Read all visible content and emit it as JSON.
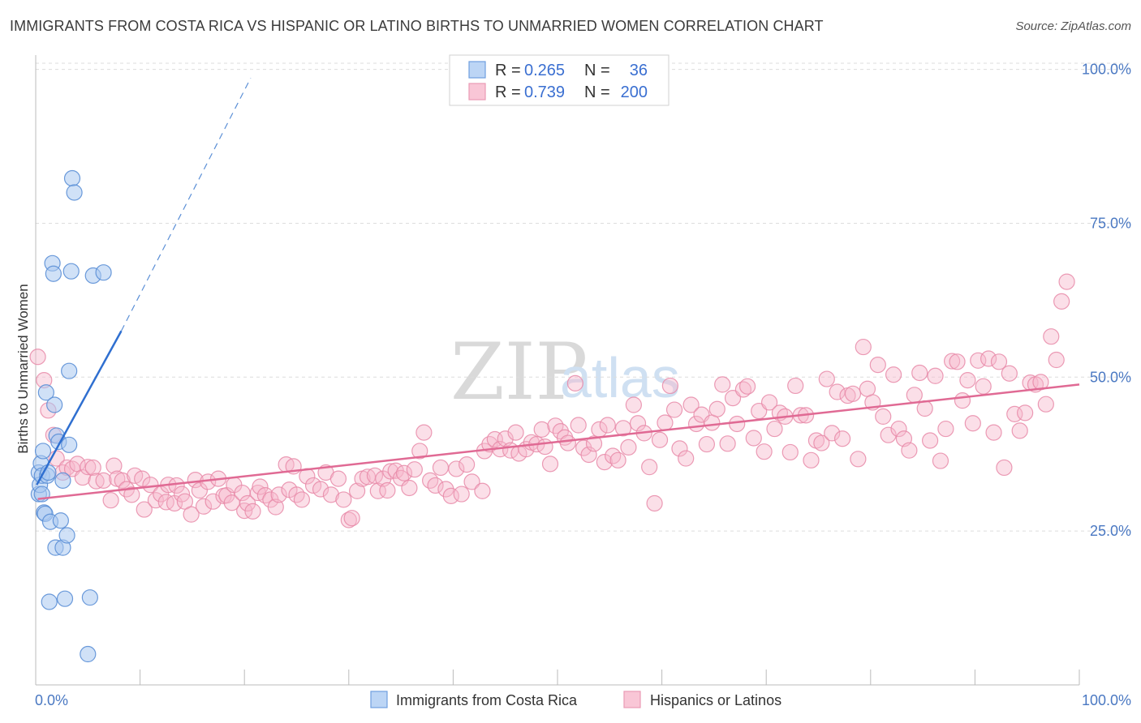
{
  "header": {
    "title": "IMMIGRANTS FROM COSTA RICA VS HISPANIC OR LATINO BIRTHS TO UNMARRIED WOMEN CORRELATION CHART",
    "source": "Source: ZipAtlas.com"
  },
  "watermark": {
    "zip": "ZIP",
    "atlas": "atlas"
  },
  "colors": {
    "blue_fill": "#a9c8f0",
    "blue_stroke": "#5b8fd6",
    "blue_line": "#2f6fd0",
    "pink_fill": "#f6b8cc",
    "pink_stroke": "#e88aa8",
    "pink_line": "#e06a94",
    "grid": "#dddddd",
    "tick_text": "#4a78c2"
  },
  "legend": {
    "rows": [
      {
        "r_label": "R =",
        "r_value": "0.265",
        "n_label": "N =",
        "n_value": "36"
      },
      {
        "r_label": "R =",
        "r_value": "0.739",
        "n_label": "N =",
        "n_value": "200"
      }
    ]
  },
  "bottom_legend": {
    "series1": "Immigrants from Costa Rica",
    "series2": "Hispanics or Latinos"
  },
  "chart_data": {
    "type": "scatter",
    "title": "IMMIGRANTS FROM COSTA RICA VS HISPANIC OR LATINO BIRTHS TO UNMARRIED WOMEN CORRELATION CHART",
    "xlabel": "",
    "ylabel": "Births to Unmarried Women",
    "xlim": [
      0,
      100
    ],
    "ylim": [
      0,
      101
    ],
    "x_tick_labels": [
      "0.0%",
      "100.0%"
    ],
    "y_ticks": [
      25,
      50,
      75,
      100
    ],
    "y_tick_labels": [
      "25.0%",
      "50.0%",
      "75.0%",
      "100.0%"
    ],
    "grid": true,
    "series": [
      {
        "name": "Immigrants from Costa Rica",
        "color": "#a9c8f0",
        "trend": {
          "x0": 0.1,
          "y0": 32.5,
          "x1": 8.2,
          "y1": 57.5,
          "dash_to_x": 20.6,
          "dash_to_y": 98.6
        },
        "points": [
          [
            0.3,
            34.5
          ],
          [
            0.3,
            31
          ],
          [
            0.4,
            32.5
          ],
          [
            0.5,
            36
          ],
          [
            0.6,
            34
          ],
          [
            0.6,
            31
          ],
          [
            0.7,
            38
          ],
          [
            0.8,
            28
          ],
          [
            0.9,
            27.8
          ],
          [
            1.0,
            47.5
          ],
          [
            1.1,
            34
          ],
          [
            1.2,
            34.5
          ],
          [
            1.3,
            13.5
          ],
          [
            1.4,
            26.5
          ],
          [
            1.6,
            68.5
          ],
          [
            1.7,
            66.8
          ],
          [
            1.8,
            45.5
          ],
          [
            1.9,
            22.3
          ],
          [
            2.0,
            40.5
          ],
          [
            2.2,
            39.5
          ],
          [
            2.4,
            26.7
          ],
          [
            2.6,
            22.3
          ],
          [
            2.6,
            33.2
          ],
          [
            2.8,
            14
          ],
          [
            3.0,
            24.3
          ],
          [
            3.2,
            51
          ],
          [
            3.2,
            39
          ],
          [
            3.4,
            67.2
          ],
          [
            3.5,
            82.3
          ],
          [
            3.7,
            80
          ],
          [
            5.0,
            5
          ],
          [
            5.2,
            14.2
          ],
          [
            5.5,
            66.5
          ],
          [
            6.5,
            67
          ]
        ]
      },
      {
        "name": "Hispanics or Latinos",
        "color": "#f6b8cc",
        "trend": {
          "x0": 0.2,
          "y0": 30.2,
          "x1": 100,
          "y1": 48.8
        },
        "points": [
          [
            0.2,
            53.3
          ],
          [
            0.8,
            49.5
          ],
          [
            1.2,
            44.6
          ],
          [
            1.7,
            40.6
          ],
          [
            2.0,
            36.8
          ],
          [
            2.6,
            34.5
          ],
          [
            3.0,
            35.3
          ],
          [
            3.5,
            35.1
          ],
          [
            4.0,
            35.9
          ],
          [
            4.5,
            33.7
          ],
          [
            5.0,
            35.4
          ],
          [
            5.5,
            35.3
          ],
          [
            5.8,
            33.1
          ],
          [
            6.5,
            33.2
          ],
          [
            7.2,
            30
          ],
          [
            7.5,
            35.6
          ],
          [
            7.8,
            33.5
          ],
          [
            8.3,
            33.2
          ],
          [
            8.7,
            31.8
          ],
          [
            9.2,
            30.9
          ],
          [
            9.5,
            34
          ],
          [
            10.2,
            33.5
          ],
          [
            10.4,
            28.5
          ],
          [
            11.0,
            32.5
          ],
          [
            11.5,
            30
          ],
          [
            12.0,
            31
          ],
          [
            12.5,
            29.7
          ],
          [
            12.7,
            32.5
          ],
          [
            13.3,
            29.5
          ],
          [
            13.5,
            32.4
          ],
          [
            14.0,
            31
          ],
          [
            14.3,
            29.8
          ],
          [
            14.9,
            27.7
          ],
          [
            15.3,
            33.3
          ],
          [
            15.7,
            31.6
          ],
          [
            16.1,
            29
          ],
          [
            16.5,
            33
          ],
          [
            17.0,
            29.8
          ],
          [
            17.5,
            33.5
          ],
          [
            18.0,
            30.7
          ],
          [
            18.3,
            30.8
          ],
          [
            18.8,
            29.6
          ],
          [
            19.0,
            32.5
          ],
          [
            19.8,
            31.2
          ],
          [
            20.0,
            28.3
          ],
          [
            20.3,
            29.5
          ],
          [
            20.8,
            28.2
          ],
          [
            21.3,
            31.2
          ],
          [
            21.5,
            32.2
          ],
          [
            22.0,
            30.8
          ],
          [
            22.5,
            30.1
          ],
          [
            23.0,
            28.9
          ],
          [
            23.3,
            30.9
          ],
          [
            24.0,
            35.8
          ],
          [
            24.3,
            31.7
          ],
          [
            24.7,
            35.5
          ],
          [
            25.0,
            30.9
          ],
          [
            25.5,
            30.1
          ],
          [
            26.0,
            33.9
          ],
          [
            26.6,
            32.4
          ],
          [
            27.3,
            31.8
          ],
          [
            27.8,
            34.5
          ],
          [
            28.3,
            30.9
          ],
          [
            29.0,
            33.5
          ],
          [
            29.5,
            30.1
          ],
          [
            30.0,
            26.8
          ],
          [
            30.3,
            27.1
          ],
          [
            30.8,
            31.5
          ],
          [
            31.3,
            33.5
          ],
          [
            31.8,
            33.8
          ],
          [
            32.5,
            34
          ],
          [
            32.8,
            31.5
          ],
          [
            33.3,
            33.5
          ],
          [
            33.7,
            31.6
          ],
          [
            34.0,
            34.7
          ],
          [
            34.5,
            34.8
          ],
          [
            35.0,
            33.6
          ],
          [
            35.3,
            34.4
          ],
          [
            35.8,
            32
          ],
          [
            36.3,
            35
          ],
          [
            36.8,
            38
          ],
          [
            37.2,
            41
          ],
          [
            37.8,
            33.2
          ],
          [
            38.3,
            32.4
          ],
          [
            38.8,
            35.3
          ],
          [
            39.3,
            31.8
          ],
          [
            39.8,
            30.7
          ],
          [
            40.3,
            35.1
          ],
          [
            40.8,
            31
          ],
          [
            41.3,
            35.8
          ],
          [
            41.8,
            33
          ],
          [
            42.8,
            31.5
          ],
          [
            43.0,
            38
          ],
          [
            43.5,
            39.1
          ],
          [
            44.0,
            39.9
          ],
          [
            44.5,
            38.3
          ],
          [
            45.0,
            40
          ],
          [
            45.5,
            38.1
          ],
          [
            46.0,
            41
          ],
          [
            46.3,
            37.6
          ],
          [
            47.0,
            38.3
          ],
          [
            47.5,
            39.4
          ],
          [
            48.0,
            39.1
          ],
          [
            48.5,
            41.5
          ],
          [
            48.8,
            38.7
          ],
          [
            49.3,
            35.9
          ],
          [
            49.8,
            42.1
          ],
          [
            50.3,
            41.2
          ],
          [
            50.7,
            40.2
          ],
          [
            51.0,
            39.3
          ],
          [
            51.7,
            49
          ],
          [
            52.0,
            42.2
          ],
          [
            52.5,
            38.5
          ],
          [
            53.0,
            37.4
          ],
          [
            53.5,
            39.2
          ],
          [
            54.0,
            41.5
          ],
          [
            54.5,
            36.2
          ],
          [
            54.8,
            42.2
          ],
          [
            55.3,
            37.2
          ],
          [
            55.8,
            36.5
          ],
          [
            56.3,
            41.7
          ],
          [
            56.8,
            38.6
          ],
          [
            57.3,
            45.5
          ],
          [
            57.7,
            42.5
          ],
          [
            58.3,
            40.9
          ],
          [
            58.8,
            35.4
          ],
          [
            59.3,
            29.5
          ],
          [
            59.8,
            39.8
          ],
          [
            60.3,
            42.6
          ],
          [
            60.8,
            48.6
          ],
          [
            61.2,
            44.7
          ],
          [
            61.7,
            38.4
          ],
          [
            62.3,
            36.8
          ],
          [
            62.8,
            45.5
          ],
          [
            63.3,
            42.4
          ],
          [
            63.8,
            43.9
          ],
          [
            64.3,
            39.1
          ],
          [
            64.8,
            42.6
          ],
          [
            65.3,
            44.8
          ],
          [
            65.8,
            48.8
          ],
          [
            66.3,
            39.2
          ],
          [
            66.8,
            46.6
          ],
          [
            67.2,
            42.4
          ],
          [
            67.8,
            48
          ],
          [
            68.2,
            48.5
          ],
          [
            68.8,
            40.1
          ],
          [
            69.3,
            44.5
          ],
          [
            69.8,
            37.9
          ],
          [
            70.3,
            45.9
          ],
          [
            70.8,
            41.6
          ],
          [
            71.3,
            44.2
          ],
          [
            71.8,
            43.6
          ],
          [
            72.3,
            37.8
          ],
          [
            72.8,
            48.6
          ],
          [
            73.3,
            43.8
          ],
          [
            73.8,
            43.8
          ],
          [
            74.3,
            36.5
          ],
          [
            74.8,
            39.7
          ],
          [
            75.3,
            39.3
          ],
          [
            75.8,
            49.7
          ],
          [
            76.3,
            40.9
          ],
          [
            76.8,
            47.6
          ],
          [
            77.3,
            40
          ],
          [
            77.8,
            47
          ],
          [
            78.3,
            47.3
          ],
          [
            78.8,
            36.7
          ],
          [
            79.3,
            54.9
          ],
          [
            79.7,
            48.1
          ],
          [
            80.2,
            45.9
          ],
          [
            80.7,
            52
          ],
          [
            81.2,
            43.6
          ],
          [
            81.7,
            40.6
          ],
          [
            82.2,
            50.4
          ],
          [
            82.7,
            41.6
          ],
          [
            83.2,
            40
          ],
          [
            83.7,
            38.1
          ],
          [
            84.2,
            47.1
          ],
          [
            84.7,
            50.7
          ],
          [
            85.2,
            44.9
          ],
          [
            85.7,
            39.7
          ],
          [
            86.2,
            50.2
          ],
          [
            86.7,
            36.4
          ],
          [
            87.2,
            41.6
          ],
          [
            87.8,
            52.6
          ],
          [
            88.3,
            52.5
          ],
          [
            88.8,
            46.2
          ],
          [
            89.3,
            49.5
          ],
          [
            89.8,
            42.5
          ],
          [
            90.3,
            52.7
          ],
          [
            90.8,
            48.5
          ],
          [
            91.3,
            53
          ],
          [
            91.8,
            41
          ],
          [
            92.3,
            52.5
          ],
          [
            92.8,
            35.3
          ],
          [
            93.3,
            50.6
          ],
          [
            93.8,
            44
          ],
          [
            94.3,
            41.3
          ],
          [
            94.8,
            44.2
          ],
          [
            95.3,
            49.1
          ],
          [
            95.8,
            48.8
          ],
          [
            96.3,
            49.2
          ],
          [
            96.8,
            45.6
          ],
          [
            97.3,
            56.6
          ],
          [
            97.8,
            52.8
          ],
          [
            98.3,
            62.3
          ],
          [
            98.8,
            65.5
          ]
        ]
      }
    ]
  }
}
